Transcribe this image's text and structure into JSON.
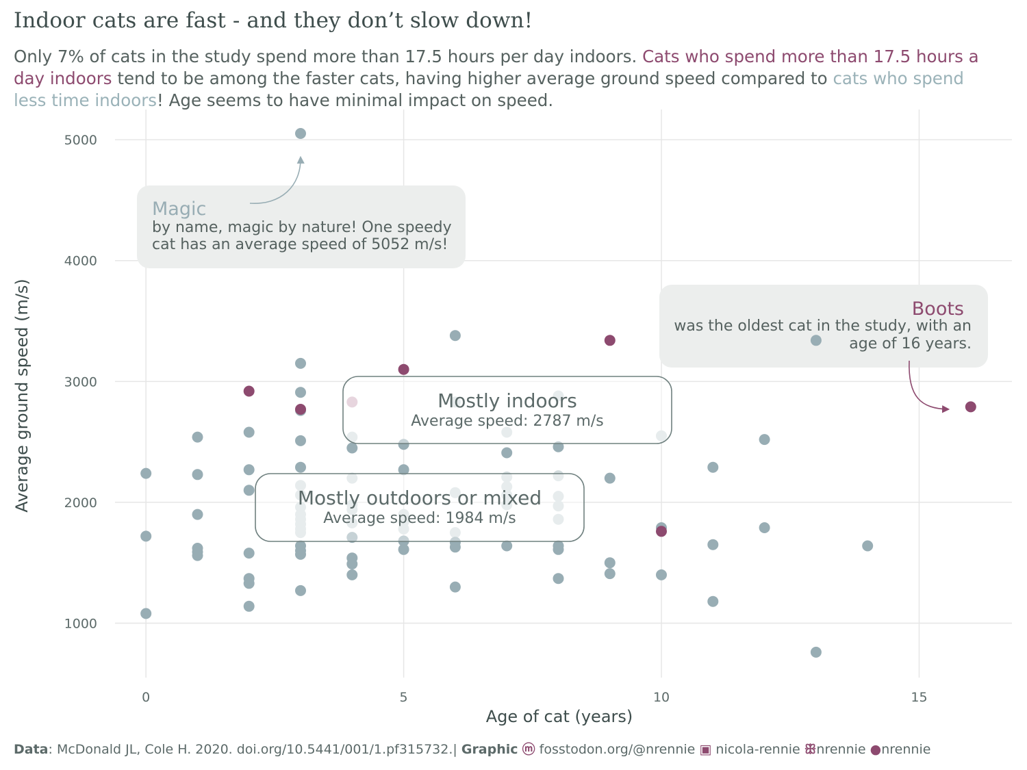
{
  "title": "Indoor cats are fast - and they don’t slow down!",
  "subtitle": {
    "part1": "Only 7% of cats in the study spend more than 17.5 hours per day indoors. ",
    "hl_indoor": "Cats who spend more than 17.5 hours a day indoors",
    "part2": " tend to be among the faster cats, having higher average ground speed compared to ",
    "hl_outdoor": "cats who spend less time indoors",
    "part3": "! Age seems to have minimal impact on speed."
  },
  "colors": {
    "indoor": "#8d4a6f",
    "outdoor": "#98adb4",
    "outdoor_faded": "#d3dcde",
    "indoor_faded": "#d3b3c3",
    "grid": "#e6e6e6",
    "annotation_bg": "#eceeed",
    "box_stroke": "#6f807f"
  },
  "annotations": {
    "magic": {
      "title": "Magic",
      "line1": "by name, magic by nature! One speedy",
      "line2": "cat has an average speed of 5052 m/s!"
    },
    "boots": {
      "title": "Boots",
      "line1": "was the oldest cat in the study, with an",
      "line2": "age of 16 years."
    },
    "indoors_box": {
      "title": "Mostly indoors",
      "sub": "Average speed: 2787 m/s"
    },
    "outdoors_box": {
      "title": "Mostly outdoors or mixed",
      "sub": "Average speed: 1984 m/s"
    }
  },
  "caption": {
    "data_label": "Data",
    "data_text": ": McDonald JL, Cole H. 2020. doi.org/10.5441/001/1.pf315732.|",
    "graphic_label": "Graphic",
    "mastodon": "fosstodon.org/@nrennie",
    "linkedin": "nicola-rennie",
    "bluesky": "nrennie",
    "github": "nrennie",
    "mastodon_icon": "mastodon-icon",
    "linkedin_icon": "linkedin-icon",
    "bluesky_icon": "bluesky-icon",
    "github_icon": "github-icon"
  },
  "chart_data": {
    "type": "scatter",
    "xlabel": "Age of cat (years)",
    "ylabel": "Average ground speed (m/s)",
    "xlim": [
      -0.6,
      16.8
    ],
    "ylim": [
      550,
      5250
    ],
    "xticks": [
      0,
      5,
      10,
      15
    ],
    "yticks": [
      1000,
      2000,
      3000,
      4000,
      5000
    ],
    "grid": true,
    "series": [
      {
        "group": "indoor",
        "points": [
          [
            2,
            2920
          ],
          [
            3,
            2770
          ],
          [
            5,
            3100
          ],
          [
            9,
            3340
          ],
          [
            10,
            1760
          ],
          [
            16,
            2790
          ]
        ]
      },
      {
        "group": "outdoor",
        "points": [
          [
            3,
            5052
          ],
          [
            6,
            3380
          ],
          [
            3,
            3150
          ],
          [
            3,
            2910
          ],
          [
            2,
            2580
          ],
          [
            1,
            2540
          ],
          [
            3,
            2510
          ],
          [
            4,
            2450
          ],
          [
            5,
            2480
          ],
          [
            8,
            2460
          ],
          [
            7,
            2410
          ],
          [
            12,
            2520
          ],
          [
            11,
            2290
          ],
          [
            0,
            2240
          ],
          [
            1,
            2230
          ],
          [
            2,
            2270
          ],
          [
            3,
            2290
          ],
          [
            5,
            2270
          ],
          [
            9,
            2200
          ],
          [
            2,
            2100
          ],
          [
            1,
            1900
          ],
          [
            0,
            1720
          ],
          [
            1,
            1620
          ],
          [
            1,
            1590
          ],
          [
            1,
            1560
          ],
          [
            2,
            1580
          ],
          [
            3,
            1640
          ],
          [
            3,
            1600
          ],
          [
            3,
            1570
          ],
          [
            4,
            1710
          ],
          [
            4,
            1540
          ],
          [
            4,
            1490
          ],
          [
            5,
            1680
          ],
          [
            5,
            1610
          ],
          [
            6,
            1670
          ],
          [
            6,
            1630
          ],
          [
            7,
            1640
          ],
          [
            8,
            1640
          ],
          [
            8,
            1610
          ],
          [
            10,
            1790
          ],
          [
            11,
            1650
          ],
          [
            12,
            1790
          ],
          [
            14,
            1640
          ],
          [
            9,
            1500
          ],
          [
            9,
            1410
          ],
          [
            10,
            1400
          ],
          [
            4,
            1400
          ],
          [
            2,
            1370
          ],
          [
            2,
            1330
          ],
          [
            8,
            1370
          ],
          [
            3,
            1270
          ],
          [
            6,
            1300
          ],
          [
            11,
            1180
          ],
          [
            2,
            1140
          ],
          [
            0,
            1080
          ],
          [
            13,
            760
          ],
          [
            13,
            3340
          ],
          [
            3,
            2760
          ]
        ]
      },
      {
        "group": "outdoor_faded",
        "points": [
          [
            3,
            2140
          ],
          [
            3,
            2060
          ],
          [
            3,
            1960
          ],
          [
            3,
            1900
          ],
          [
            3,
            1860
          ],
          [
            3,
            1820
          ],
          [
            3,
            1780
          ],
          [
            3,
            1750
          ],
          [
            4,
            2540
          ],
          [
            4,
            2200
          ],
          [
            4,
            1980
          ],
          [
            4,
            1940
          ],
          [
            4,
            1830
          ],
          [
            5,
            1900
          ],
          [
            5,
            1840
          ],
          [
            5,
            1780
          ],
          [
            6,
            2830
          ],
          [
            6,
            2080
          ],
          [
            6,
            1750
          ],
          [
            7,
            2580
          ],
          [
            7,
            2210
          ],
          [
            7,
            2130
          ],
          [
            7,
            2060
          ],
          [
            7,
            1980
          ],
          [
            8,
            2880
          ],
          [
            8,
            2220
          ],
          [
            8,
            2050
          ],
          [
            8,
            1970
          ],
          [
            8,
            1860
          ],
          [
            10,
            2550
          ]
        ]
      },
      {
        "group": "indoor_faded",
        "points": [
          [
            4,
            2830
          ]
        ]
      }
    ]
  }
}
